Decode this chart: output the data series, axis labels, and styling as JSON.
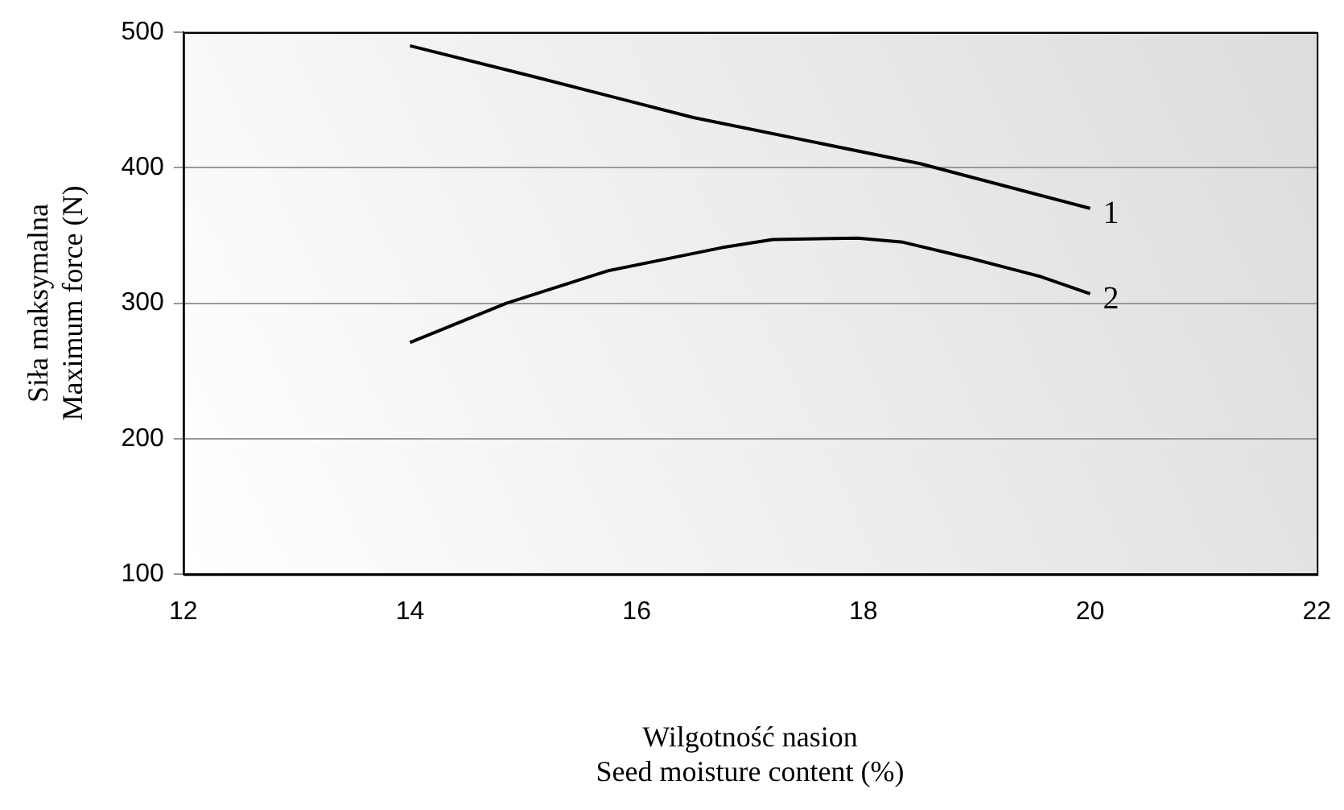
{
  "chart_data": {
    "type": "line",
    "xlabel": "Wilgotność nasion\nSeed moisture content (%)",
    "ylabel": "Siła maksymalna\nMaximum force (N)",
    "xlim": [
      12,
      22
    ],
    "xticks": [
      12,
      14,
      16,
      18,
      20,
      22
    ],
    "ylim": [
      100,
      500
    ],
    "yticks": [
      100,
      200,
      300,
      400,
      500
    ],
    "grid": "y",
    "legend": false,
    "marker": "none",
    "line_style": "solid",
    "series": [
      {
        "name": "1",
        "color": "#000000",
        "x": [
          14,
          15.1,
          16.5,
          18.5,
          20
        ],
        "values": [
          490,
          467,
          437,
          403,
          370
        ]
      },
      {
        "name": "2",
        "color": "#000000",
        "x": [
          14,
          14.85,
          15.75,
          16.75,
          17.2,
          17.95,
          18.35,
          18.95,
          19.55,
          20
        ],
        "values": [
          271,
          300,
          324,
          341,
          347,
          348,
          345,
          333,
          320,
          307
        ]
      }
    ]
  }
}
